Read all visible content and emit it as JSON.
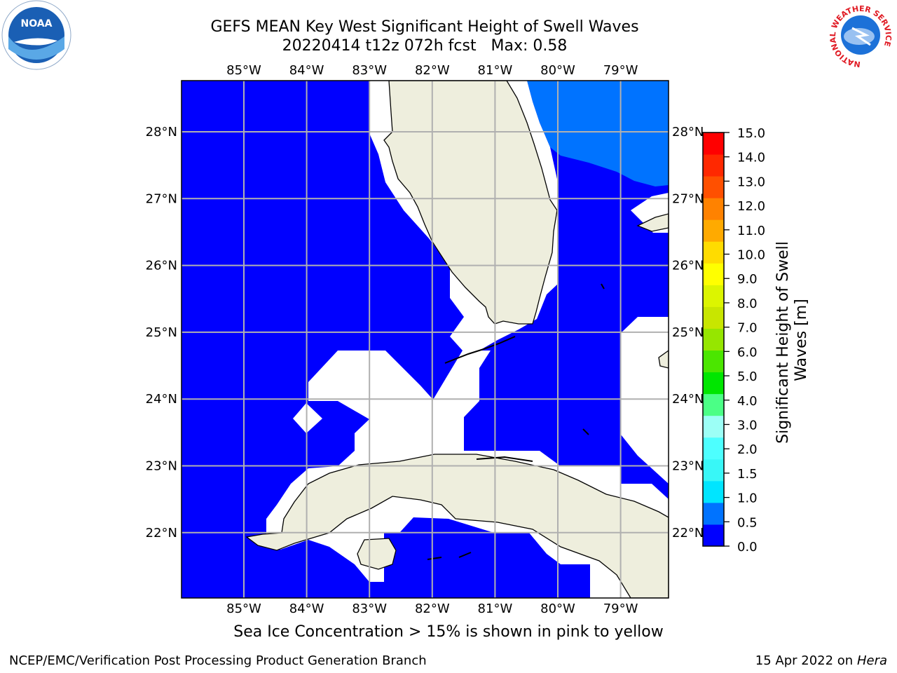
{
  "header": {
    "title_line1": "GEFS MEAN Key West Significant Height of Swell Waves",
    "title_line2": "20220414 t12z 072h fcst   Max: 0.58"
  },
  "map": {
    "lon_ticks": [
      "85°W",
      "84°W",
      "83°W",
      "82°W",
      "81°W",
      "80°W",
      "79°W"
    ],
    "lat_ticks": [
      "28°N",
      "27°N",
      "26°N",
      "25°N",
      "24°N",
      "23°N",
      "22°N"
    ],
    "colors": {
      "ocean_low": "#0000ff",
      "ocean_mid": "#0073ff",
      "land": "#eeeedd",
      "no_data": "#ffffff",
      "grid": "#b0b0b0"
    }
  },
  "colorbar": {
    "label_line1": "Significant Height of Swell",
    "label_line2": "Waves [m]",
    "tick_labels": [
      "0.0",
      "0.5",
      "1.0",
      "1.5",
      "2.0",
      "3.0",
      "4.0",
      "5.0",
      "6.0",
      "7.0",
      "8.0",
      "9.0",
      "10.0",
      "11.0",
      "12.0",
      "13.0",
      "14.0",
      "15.0"
    ],
    "colors": [
      "#0000ff",
      "#0073ff",
      "#00e5ff",
      "#38f7f7",
      "#4dffff",
      "#9cfff6",
      "#4bff86",
      "#00e600",
      "#4be600",
      "#96e600",
      "#c8e600",
      "#dcf500",
      "#ffff00",
      "#ffdc00",
      "#ffaa00",
      "#ff8200",
      "#ff5000",
      "#ff2800",
      "#ff0000"
    ]
  },
  "note": "Sea Ice Concentration > 15% is shown in pink to yellow",
  "footer": {
    "left": "NCEP/EMC/Verification Post Processing Product Generation Branch",
    "date": "15 Apr 2022 on ",
    "host": "Hera"
  },
  "logos": {
    "noaa": "NOAA",
    "nws_ring": "NATIONAL WEATHER SERVICE"
  }
}
